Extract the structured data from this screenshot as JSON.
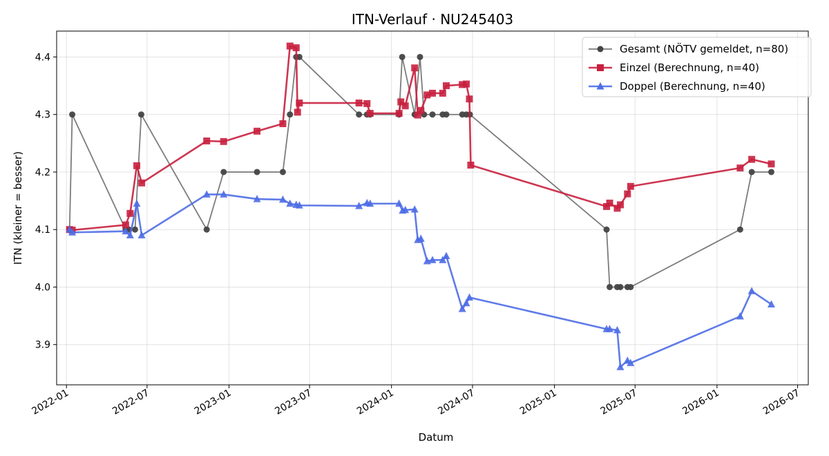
{
  "chart_data": {
    "type": "line",
    "title": "ITN-Verlauf · NU245403",
    "xlabel": "Datum",
    "ylabel": "ITN  (kleiner = besser)",
    "x_type": "date",
    "xlim": [
      "2021-12-10",
      "2026-07-25"
    ],
    "ylim": [
      3.83,
      4.445
    ],
    "grid": true,
    "legend_position": "top-right",
    "x_ticks": [
      "2022-01",
      "2022-07",
      "2023-01",
      "2023-07",
      "2024-01",
      "2024-07",
      "2025-01",
      "2025-07",
      "2026-01",
      "2026-07"
    ],
    "y_ticks": [
      3.9,
      4.0,
      4.1,
      4.2,
      4.3,
      4.4
    ],
    "series": [
      {
        "name": "Gesamt (NÖTV gemeldet, n=80)",
        "color": "#444444",
        "marker": "circle",
        "points": [
          [
            "2022-01-08",
            4.1
          ],
          [
            "2022-01-14",
            4.3
          ],
          [
            "2022-05-14",
            4.1
          ],
          [
            "2022-05-21",
            4.1
          ],
          [
            "2022-06-04",
            4.1
          ],
          [
            "2022-06-18",
            4.3
          ],
          [
            "2022-11-12",
            4.1
          ],
          [
            "2022-12-20",
            4.2
          ],
          [
            "2023-03-05",
            4.2
          ],
          [
            "2023-05-02",
            4.2
          ],
          [
            "2023-05-18",
            4.3
          ],
          [
            "2023-06-01",
            4.4
          ],
          [
            "2023-06-08",
            4.4
          ],
          [
            "2023-10-20",
            4.3
          ],
          [
            "2023-11-07",
            4.3
          ],
          [
            "2023-11-14",
            4.3
          ],
          [
            "2024-01-18",
            4.3
          ],
          [
            "2024-01-25",
            4.4
          ],
          [
            "2024-02-22",
            4.3
          ],
          [
            "2024-03-05",
            4.4
          ],
          [
            "2024-03-14",
            4.3
          ],
          [
            "2024-04-02",
            4.3
          ],
          [
            "2024-04-25",
            4.3
          ],
          [
            "2024-05-03",
            4.3
          ],
          [
            "2024-06-08",
            4.3
          ],
          [
            "2024-06-17",
            4.3
          ],
          [
            "2024-06-25",
            4.3
          ],
          [
            "2025-04-28",
            4.1
          ],
          [
            "2025-05-05",
            4.0
          ],
          [
            "2025-05-22",
            4.0
          ],
          [
            "2025-05-29",
            4.0
          ],
          [
            "2025-06-14",
            4.0
          ],
          [
            "2025-06-21",
            4.0
          ],
          [
            "2026-02-22",
            4.1
          ],
          [
            "2026-03-20",
            4.2
          ],
          [
            "2026-05-03",
            4.2
          ]
        ]
      },
      {
        "name": "Einzel (Berechnung, n=40)",
        "color": "#c8203e",
        "marker": "square",
        "points": [
          [
            "2022-01-08",
            4.1
          ],
          [
            "2022-01-14",
            4.099
          ],
          [
            "2022-05-14",
            4.108
          ],
          [
            "2022-05-24",
            4.128
          ],
          [
            "2022-06-08",
            4.211
          ],
          [
            "2022-06-19",
            4.181
          ],
          [
            "2022-11-12",
            4.254
          ],
          [
            "2022-12-20",
            4.253
          ],
          [
            "2023-03-05",
            4.271
          ],
          [
            "2023-05-02",
            4.284
          ],
          [
            "2023-05-18",
            4.419
          ],
          [
            "2023-06-01",
            4.416
          ],
          [
            "2023-06-04",
            4.304
          ],
          [
            "2023-06-08",
            4.32
          ],
          [
            "2023-10-20",
            4.32
          ],
          [
            "2023-11-07",
            4.319
          ],
          [
            "2023-11-14",
            4.302
          ],
          [
            "2024-01-18",
            4.302
          ],
          [
            "2024-01-22",
            4.322
          ],
          [
            "2024-02-01",
            4.315
          ],
          [
            "2024-02-22",
            4.381
          ],
          [
            "2024-02-29",
            4.299
          ],
          [
            "2024-03-07",
            4.307
          ],
          [
            "2024-03-21",
            4.334
          ],
          [
            "2024-04-02",
            4.337
          ],
          [
            "2024-04-25",
            4.337
          ],
          [
            "2024-05-03",
            4.35
          ],
          [
            "2024-06-08",
            4.352
          ],
          [
            "2024-06-17",
            4.353
          ],
          [
            "2024-06-24",
            4.327
          ],
          [
            "2024-06-27",
            4.212
          ],
          [
            "2025-04-28",
            4.14
          ],
          [
            "2025-05-05",
            4.146
          ],
          [
            "2025-05-22",
            4.137
          ],
          [
            "2025-05-29",
            4.143
          ],
          [
            "2025-06-14",
            4.162
          ],
          [
            "2025-06-21",
            4.175
          ],
          [
            "2026-02-22",
            4.207
          ],
          [
            "2026-03-20",
            4.222
          ],
          [
            "2026-05-03",
            4.214
          ]
        ]
      },
      {
        "name": "Doppel (Berechnung, n=40)",
        "color": "#4e6de6",
        "marker": "triangle",
        "points": [
          [
            "2022-01-08",
            4.1
          ],
          [
            "2022-01-14",
            4.095
          ],
          [
            "2022-05-14",
            4.097
          ],
          [
            "2022-05-24",
            4.09
          ],
          [
            "2022-06-08",
            4.145
          ],
          [
            "2022-06-19",
            4.09
          ],
          [
            "2022-11-12",
            4.161
          ],
          [
            "2022-12-20",
            4.161
          ],
          [
            "2023-03-05",
            4.153
          ],
          [
            "2023-05-02",
            4.152
          ],
          [
            "2023-05-18",
            4.145
          ],
          [
            "2023-06-01",
            4.143
          ],
          [
            "2023-06-08",
            4.142
          ],
          [
            "2023-10-20",
            4.141
          ],
          [
            "2023-11-07",
            4.146
          ],
          [
            "2023-11-14",
            4.145
          ],
          [
            "2024-01-18",
            4.145
          ],
          [
            "2024-01-26",
            4.133
          ],
          [
            "2024-02-01",
            4.134
          ],
          [
            "2024-02-22",
            4.135
          ],
          [
            "2024-02-29",
            4.082
          ],
          [
            "2024-03-07",
            4.084
          ],
          [
            "2024-03-21",
            4.045
          ],
          [
            "2024-04-02",
            4.047
          ],
          [
            "2024-04-25",
            4.047
          ],
          [
            "2024-05-03",
            4.054
          ],
          [
            "2024-06-08",
            3.962
          ],
          [
            "2024-06-17",
            3.972
          ],
          [
            "2024-06-24",
            3.982
          ],
          [
            "2025-04-28",
            3.927
          ],
          [
            "2025-05-05",
            3.927
          ],
          [
            "2025-05-22",
            3.925
          ],
          [
            "2025-05-29",
            3.861
          ],
          [
            "2025-06-14",
            3.872
          ],
          [
            "2025-06-21",
            3.868
          ],
          [
            "2026-02-22",
            3.949
          ],
          [
            "2026-03-20",
            3.993
          ],
          [
            "2026-05-03",
            3.97
          ]
        ]
      }
    ]
  }
}
